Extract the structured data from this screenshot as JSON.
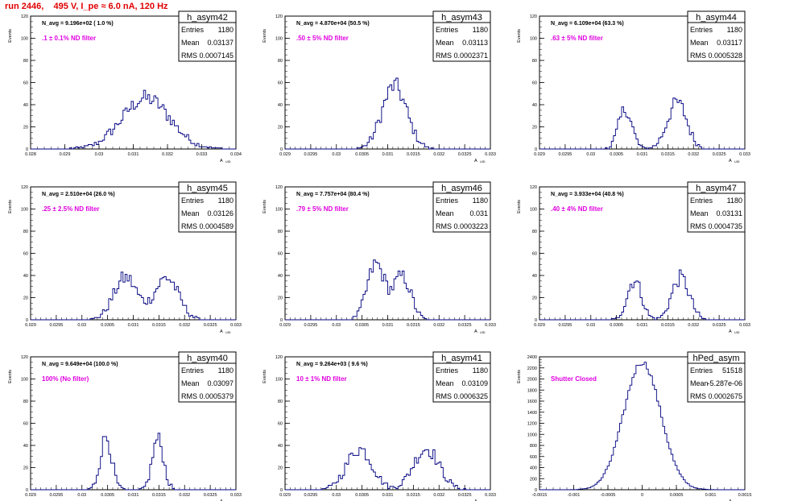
{
  "run_title": "run 2446,    495 V, I_pe ≈ 6.0 nA, 120 Hz",
  "colors": {
    "histogram": "#000080",
    "filter_label": "#e000e0",
    "title_red": "#e00000"
  },
  "stat_labels": {
    "entries": "Entries",
    "mean": "Mean",
    "rms": "RMS"
  },
  "y_axis_label": "Events",
  "x_axis_label": "A",
  "x_axis_sub": "UID",
  "panels": [
    {
      "name": "h_asym42",
      "navg": "N_avg = 9.196e+02 ( 1.0 %)",
      "filter": ".1 ± 0.1% ND filter",
      "entries": "1180",
      "mean": "0.03137",
      "rms": "0.0007145",
      "xticks": [
        "0.028",
        "0.029",
        "0.03",
        "0.031",
        "0.032",
        "0.033",
        "0.034"
      ],
      "yticks": [
        "0",
        "20",
        "40",
        "60",
        "80",
        "100",
        "120"
      ],
      "xlim": [
        0.028,
        0.034
      ],
      "ylim": [
        0,
        120
      ],
      "shape": {
        "type": "gauss",
        "components": [
          [
            0.03137,
            0.0007,
            4.6
          ]
        ]
      }
    },
    {
      "name": "h_asym43",
      "navg": "N_avg = 4.870e+04 (50.5 %)",
      "filter": ".50 ± 5% ND filter",
      "entries": "1180",
      "mean": "0.03113",
      "rms": "0.0002371",
      "xticks": [
        "0.029",
        "0.0295",
        "0.03",
        "0.0305",
        "0.031",
        "0.0315",
        "0.032",
        "0.0325",
        "0.033"
      ],
      "yticks": [
        "0",
        "20",
        "40",
        "60",
        "80",
        "100",
        "120"
      ],
      "xlim": [
        0.029,
        0.033
      ],
      "ylim": [
        0,
        120
      ],
      "shape": {
        "type": "gauss",
        "components": [
          [
            0.03113,
            0.00024,
            5.7
          ]
        ]
      }
    },
    {
      "name": "h_asym44",
      "navg": "N_avg = 6.109e+04 (63.3 %)",
      "filter": ".63 ± 5% ND filter",
      "entries": "1180",
      "mean": "0.03117",
      "rms": "0.0005328",
      "xticks": [
        "0.029",
        "0.0295",
        "0.03",
        "0.0305",
        "0.031",
        "0.0315",
        "0.032",
        "0.0325",
        "0.033"
      ],
      "yticks": [
        "0",
        "20",
        "40",
        "60",
        "80",
        "100",
        "120"
      ],
      "xlim": [
        0.029,
        0.033
      ],
      "ylim": [
        0,
        120
      ],
      "shape": {
        "type": "gauss",
        "components": [
          [
            0.03067,
            0.00013,
            3.6
          ],
          [
            0.03168,
            0.00019,
            4.2
          ]
        ]
      }
    },
    {
      "name": "h_asym45",
      "navg": "N_avg = 2.510e+04 (26.0 %)",
      "filter": ".25 ± 2.5% ND filter",
      "entries": "1180",
      "mean": "0.03126",
      "rms": "0.0004589",
      "xticks": [
        "0.029",
        "0.0295",
        "0.03",
        "0.0305",
        "0.031",
        "0.0315",
        "0.032",
        "0.0325",
        "0.033"
      ],
      "yticks": [
        "0",
        "20",
        "40",
        "60",
        "80",
        "100",
        "120"
      ],
      "xlim": [
        0.029,
        0.033
      ],
      "ylim": [
        0,
        120
      ],
      "shape": {
        "type": "gauss",
        "components": [
          [
            0.03085,
            0.00023,
            3.8
          ],
          [
            0.03165,
            0.00023,
            3.8
          ]
        ]
      }
    },
    {
      "name": "h_asym46",
      "navg": "N_avg = 7.757e+04 (80.4 %)",
      "filter": ".79 ± 5% ND filter",
      "entries": "1180",
      "mean": "0.031",
      "rms": "0.0003223",
      "xticks": [
        "0.029",
        "0.0295",
        "0.03",
        "0.0305",
        "0.031",
        "0.0315",
        "0.032",
        "0.0325",
        "0.033"
      ],
      "yticks": [
        "0",
        "20",
        "40",
        "60",
        "80",
        "100",
        "120"
      ],
      "xlim": [
        0.029,
        0.033
      ],
      "ylim": [
        0,
        120
      ],
      "shape": {
        "type": "gauss",
        "components": [
          [
            0.03077,
            0.00017,
            5.0
          ],
          [
            0.03128,
            0.00017,
            3.9
          ]
        ]
      }
    },
    {
      "name": "h_asym47",
      "navg": "N_avg = 3.933e+04 (40.8 %)",
      "filter": ".40 ± 4% ND filter",
      "entries": "1180",
      "mean": "0.03131",
      "rms": "0.0004735",
      "xticks": [
        "0.029",
        "0.0295",
        "0.03",
        "0.0305",
        "0.031",
        "0.0315",
        "0.032",
        "0.0325",
        "0.033"
      ],
      "yticks": [
        "0",
        "20",
        "40",
        "60",
        "80",
        "100",
        "120"
      ],
      "xlim": [
        0.029,
        0.033
      ],
      "ylim": [
        0,
        120
      ],
      "shape": {
        "type": "gauss",
        "components": [
          [
            0.03085,
            0.00014,
            3.6
          ],
          [
            0.03175,
            0.00017,
            3.8
          ]
        ]
      }
    },
    {
      "name": "h_asym40",
      "navg": "N_avg = 9.649e+04 (100.0 %)",
      "filter": "100% (No filter)",
      "entries": "1180",
      "mean": "0.03097",
      "rms": "0.0005379",
      "xticks": [
        "0.029",
        "0.0295",
        "0.03",
        "0.0305",
        "0.031",
        "0.0315",
        "0.032",
        "0.0325",
        "0.033"
      ],
      "yticks": [
        "0",
        "20",
        "40",
        "60",
        "80",
        "100",
        "120"
      ],
      "xlim": [
        0.029,
        0.033
      ],
      "ylim": [
        0,
        120
      ],
      "shape": {
        "type": "gauss",
        "components": [
          [
            0.03047,
            0.00011,
            4.8
          ],
          [
            0.03148,
            0.00011,
            4.6
          ]
        ]
      }
    },
    {
      "name": "h_asym41",
      "navg": "N_avg = 9.264e+03 ( 9.6 %)",
      "filter": "10 ± 1% ND filter",
      "entries": "1180",
      "mean": "0.03109",
      "rms": "0.0006325",
      "xticks": [
        "0.029",
        "0.0295",
        "0.03",
        "0.0305",
        "0.031",
        "0.0315",
        "0.032",
        "0.0325",
        "0.033"
      ],
      "yticks": [
        "0",
        "20",
        "40",
        "60",
        "80",
        "100",
        "120"
      ],
      "xlim": [
        0.029,
        0.033
      ],
      "ylim": [
        0,
        120
      ],
      "shape": {
        "type": "gauss",
        "components": [
          [
            0.03045,
            0.00025,
            3.7
          ],
          [
            0.03175,
            0.00025,
            3.7
          ]
        ]
      }
    },
    {
      "name": "hPed_asym",
      "navg": "",
      "filter": "Shutter Closed",
      "entries": "51518",
      "mean": "-5.287e-06",
      "rms": "0.0002675",
      "xticks": [
        "-0.0015",
        "-0.001",
        "-0.0005",
        "0",
        "0.0005",
        "0.001",
        "0.0015"
      ],
      "yticks": [
        "0",
        "200",
        "400",
        "600",
        "800",
        "1000",
        "1200",
        "1400",
        "1600",
        "1800",
        "2000",
        "2200",
        "2400"
      ],
      "xlim": [
        -0.0015,
        0.0015
      ],
      "ylim": [
        0,
        2400
      ],
      "shape": {
        "type": "gauss",
        "components": [
          [
            0.0,
            0.00027,
            2300
          ]
        ]
      }
    }
  ]
}
